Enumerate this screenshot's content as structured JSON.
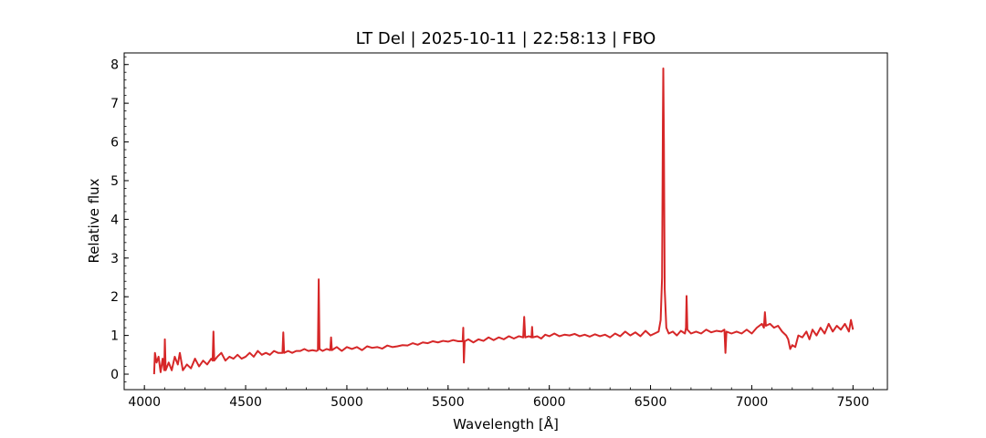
{
  "chart_data": {
    "type": "line",
    "title": "LT Del | 2025-10-11 | 22:58:13 | FBO",
    "xlabel": "Wavelength [Å]",
    "ylabel": "Relative flux",
    "color": "#d62728",
    "xlim": [
      3900,
      7670
    ],
    "ylim": [
      -0.4,
      8.3
    ],
    "xticks": [
      4000,
      4500,
      5000,
      5500,
      6000,
      6500,
      7000,
      7500
    ],
    "yticks": [
      0,
      1,
      2,
      3,
      4,
      5,
      6,
      7,
      8
    ],
    "x": [
      4048,
      4052,
      4060,
      4070,
      4080,
      4090,
      4098,
      4101,
      4105,
      4120,
      4135,
      4150,
      4165,
      4175,
      4190,
      4210,
      4230,
      4250,
      4270,
      4290,
      4310,
      4330,
      4337,
      4341,
      4345,
      4360,
      4380,
      4400,
      4420,
      4440,
      4460,
      4480,
      4500,
      4520,
      4540,
      4560,
      4580,
      4600,
      4620,
      4640,
      4660,
      4682,
      4686,
      4690,
      4710,
      4730,
      4750,
      4770,
      4790,
      4810,
      4830,
      4850,
      4857,
      4861,
      4865,
      4880,
      4900,
      4918,
      4922,
      4926,
      4950,
      4975,
      5000,
      5025,
      5050,
      5075,
      5100,
      5125,
      5150,
      5175,
      5200,
      5225,
      5250,
      5275,
      5300,
      5325,
      5350,
      5375,
      5400,
      5425,
      5450,
      5475,
      5500,
      5525,
      5550,
      5572,
      5575,
      5578,
      5582,
      5600,
      5625,
      5650,
      5675,
      5700,
      5725,
      5750,
      5775,
      5800,
      5825,
      5850,
      5871,
      5876,
      5881,
      5900,
      5912,
      5915,
      5918,
      5940,
      5960,
      5980,
      6000,
      6025,
      6050,
      6075,
      6100,
      6125,
      6150,
      6175,
      6200,
      6225,
      6250,
      6275,
      6300,
      6325,
      6350,
      6375,
      6400,
      6425,
      6450,
      6475,
      6500,
      6520,
      6540,
      6550,
      6557,
      6561,
      6563,
      6566,
      6570,
      6578,
      6590,
      6610,
      6630,
      6650,
      6670,
      6675,
      6678,
      6682,
      6700,
      6725,
      6750,
      6775,
      6800,
      6825,
      6850,
      6865,
      6870,
      6875,
      6900,
      6925,
      6950,
      6975,
      7000,
      7025,
      7050,
      7060,
      7065,
      7070,
      7090,
      7110,
      7130,
      7150,
      7170,
      7180,
      7190,
      7200,
      7215,
      7230,
      7250,
      7270,
      7285,
      7300,
      7320,
      7340,
      7360,
      7380,
      7400,
      7420,
      7440,
      7460,
      7480,
      7490,
      7500
    ],
    "values": [
      0.0,
      0.55,
      0.3,
      0.45,
      0.05,
      0.4,
      0.1,
      0.9,
      0.1,
      0.3,
      0.1,
      0.45,
      0.25,
      0.55,
      0.1,
      0.25,
      0.15,
      0.4,
      0.2,
      0.35,
      0.25,
      0.4,
      0.35,
      1.1,
      0.35,
      0.45,
      0.55,
      0.35,
      0.45,
      0.4,
      0.5,
      0.4,
      0.45,
      0.55,
      0.45,
      0.6,
      0.5,
      0.55,
      0.5,
      0.6,
      0.55,
      0.55,
      1.08,
      0.55,
      0.6,
      0.55,
      0.6,
      0.6,
      0.65,
      0.6,
      0.62,
      0.6,
      0.62,
      2.45,
      0.65,
      0.6,
      0.65,
      0.62,
      0.95,
      0.62,
      0.7,
      0.6,
      0.7,
      0.65,
      0.7,
      0.62,
      0.72,
      0.68,
      0.7,
      0.66,
      0.74,
      0.7,
      0.72,
      0.75,
      0.74,
      0.8,
      0.76,
      0.82,
      0.8,
      0.85,
      0.82,
      0.86,
      0.84,
      0.88,
      0.85,
      0.85,
      1.2,
      0.3,
      0.85,
      0.9,
      0.82,
      0.9,
      0.86,
      0.95,
      0.88,
      0.95,
      0.9,
      0.98,
      0.92,
      0.98,
      0.95,
      1.48,
      0.95,
      0.98,
      0.95,
      1.22,
      0.95,
      0.98,
      0.92,
      1.02,
      0.98,
      1.05,
      0.98,
      1.02,
      1.0,
      1.04,
      0.98,
      1.02,
      0.97,
      1.03,
      0.98,
      1.02,
      0.95,
      1.05,
      0.98,
      1.1,
      1.0,
      1.08,
      0.98,
      1.12,
      1.0,
      1.05,
      1.1,
      1.4,
      2.5,
      6.5,
      7.9,
      6.0,
      2.2,
      1.2,
      1.05,
      1.1,
      1.0,
      1.12,
      1.05,
      1.2,
      2.02,
      1.15,
      1.05,
      1.1,
      1.05,
      1.15,
      1.08,
      1.12,
      1.1,
      1.15,
      0.55,
      1.1,
      1.05,
      1.1,
      1.05,
      1.15,
      1.05,
      1.2,
      1.3,
      1.2,
      1.6,
      1.25,
      1.3,
      1.2,
      1.25,
      1.1,
      1.0,
      0.9,
      0.65,
      0.75,
      0.7,
      1.0,
      0.95,
      1.1,
      0.9,
      1.15,
      1.0,
      1.2,
      1.05,
      1.3,
      1.1,
      1.25,
      1.15,
      1.3,
      1.1,
      1.4,
      1.15
    ]
  }
}
